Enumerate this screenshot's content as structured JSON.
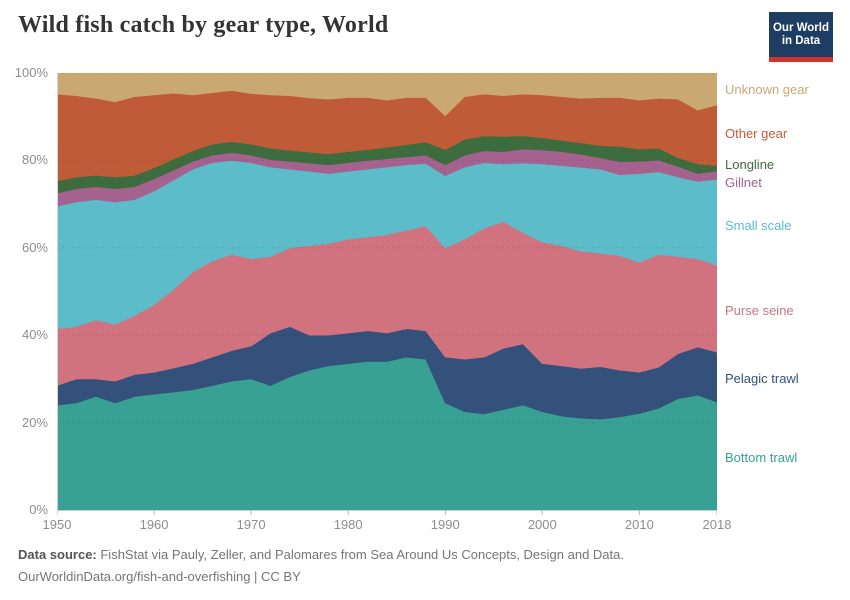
{
  "header": {
    "title": "Wild fish catch by gear type, World",
    "logo": {
      "line1": "Our World",
      "line2": "in Data",
      "bg": "#1d3d63",
      "accent": "#d0342c"
    }
  },
  "chart_data": {
    "type": "area",
    "stacked_percent": true,
    "title": "Wild fish catch by gear type, World",
    "xlabel": "",
    "ylabel": "",
    "ylim": [
      0,
      100
    ],
    "grid": "dashed-horizontal",
    "legend_position": "right",
    "x": [
      1950,
      1952,
      1954,
      1956,
      1958,
      1960,
      1962,
      1964,
      1966,
      1968,
      1970,
      1972,
      1974,
      1976,
      1978,
      1980,
      1982,
      1984,
      1986,
      1988,
      1990,
      1992,
      1994,
      1996,
      1998,
      2000,
      2002,
      2004,
      2006,
      2008,
      2010,
      2012,
      2014,
      2016,
      2018
    ],
    "x_tick_labels": [
      "1950",
      "1960",
      "1970",
      "1980",
      "1990",
      "2000",
      "2010",
      "2018"
    ],
    "y_tick_labels": [
      "0%",
      "20%",
      "40%",
      "60%",
      "80%",
      "100%"
    ],
    "series": [
      {
        "name": "Bottom trawl",
        "color": "#38a193",
        "values": [
          24.0,
          24.5,
          26.0,
          24.5,
          26.0,
          26.5,
          27.0,
          27.5,
          28.5,
          29.5,
          30.0,
          28.5,
          30.5,
          32.0,
          33.0,
          33.5,
          34.0,
          34.0,
          35.0,
          34.5,
          24.5,
          22.5,
          22.0,
          23.0,
          24.0,
          22.5,
          21.5,
          21.0,
          20.8,
          21.3,
          22.1,
          23.3,
          25.5,
          26.3,
          24.7
        ]
      },
      {
        "name": "Pelagic trawl",
        "color": "#34517b",
        "values": [
          4.5,
          5.5,
          4.0,
          5.0,
          5.0,
          5.0,
          5.5,
          6.0,
          6.5,
          7.0,
          7.5,
          12.0,
          11.5,
          8.0,
          7.0,
          7.0,
          7.0,
          6.5,
          6.5,
          6.5,
          10.5,
          12.0,
          13.0,
          14.0,
          14.0,
          11.0,
          11.5,
          11.4,
          12.0,
          10.7,
          9.4,
          9.4,
          10.3,
          11.0,
          11.4
        ]
      },
      {
        "name": "Purse seine",
        "color": "#d0737f",
        "values": [
          13.0,
          12.0,
          13.5,
          13.0,
          13.5,
          15.5,
          18.0,
          21.0,
          22.0,
          22.0,
          20.0,
          17.5,
          18.0,
          20.5,
          21.0,
          21.5,
          21.5,
          22.5,
          22.5,
          24.0,
          25.0,
          27.5,
          29.5,
          29.0,
          25.5,
          27.8,
          27.5,
          26.8,
          26.0,
          26.2,
          25.2,
          25.8,
          22.2,
          20.2,
          19.9
        ]
      },
      {
        "name": "Small scale",
        "color": "#5cbcca",
        "values": [
          28.0,
          28.5,
          27.5,
          28.0,
          26.5,
          26.0,
          25.0,
          23.5,
          22.5,
          21.5,
          22.0,
          20.5,
          18.0,
          17.0,
          16.0,
          15.5,
          15.5,
          15.5,
          15.0,
          14.3,
          16.5,
          16.5,
          15.0,
          13.2,
          15.9,
          17.9,
          18.3,
          19.2,
          19.2,
          18.5,
          20.3,
          18.9,
          18.2,
          17.7,
          19.7
        ]
      },
      {
        "name": "Gillnet",
        "color": "#a5628f",
        "values": [
          3.0,
          3.0,
          3.0,
          3.0,
          3.0,
          2.8,
          2.3,
          1.8,
          1.7,
          1.8,
          1.7,
          1.7,
          1.8,
          1.9,
          2.0,
          2.0,
          2.0,
          1.9,
          1.8,
          1.9,
          2.5,
          2.7,
          2.7,
          2.8,
          3.2,
          3.2,
          3.2,
          3.0,
          2.6,
          3.0,
          2.8,
          2.7,
          2.4,
          1.8,
          1.9
        ]
      },
      {
        "name": "Longline",
        "color": "#3d6c3e",
        "values": [
          2.8,
          2.7,
          2.6,
          2.7,
          2.6,
          2.5,
          2.5,
          2.4,
          2.5,
          2.5,
          2.5,
          2.6,
          2.5,
          2.5,
          2.5,
          2.5,
          2.5,
          2.6,
          2.8,
          3.0,
          3.5,
          3.6,
          3.4,
          3.5,
          3.0,
          2.8,
          2.6,
          2.6,
          2.8,
          3.5,
          2.8,
          2.7,
          2.0,
          2.2,
          1.2
        ]
      },
      {
        "name": "Other gear",
        "color": "#c05b38",
        "values": [
          19.9,
          18.6,
          17.6,
          17.2,
          18.0,
          16.7,
          15.1,
          12.8,
          11.8,
          11.7,
          11.6,
          12.2,
          12.5,
          12.4,
          12.5,
          12.4,
          11.9,
          10.8,
          10.8,
          10.2,
          7.7,
          9.8,
          9.6,
          9.3,
          9.6,
          9.8,
          10.0,
          10.2,
          11.0,
          11.2,
          11.2,
          11.4,
          13.4,
          12.3,
          13.9
        ]
      },
      {
        "name": "Unknown gear",
        "color": "#c9a872",
        "values": [
          4.8,
          5.2,
          5.8,
          6.6,
          5.4,
          5.0,
          4.6,
          5.0,
          4.5,
          4.0,
          4.7,
          5.0,
          5.2,
          5.7,
          6.0,
          5.6,
          5.6,
          6.2,
          5.6,
          5.6,
          9.8,
          5.4,
          4.8,
          5.2,
          4.8,
          5.0,
          5.4,
          5.8,
          5.6,
          5.6,
          6.2,
          5.8,
          6.0,
          8.5,
          7.3
        ]
      }
    ]
  },
  "footer": {
    "source_label": "Data source:",
    "source_text": " FishStat via Pauly, Zeller, and Palomares from Sea Around Us Concepts, Design and Data.",
    "link_text": "OurWorldinData.org/fish-and-overfishing | CC BY"
  }
}
